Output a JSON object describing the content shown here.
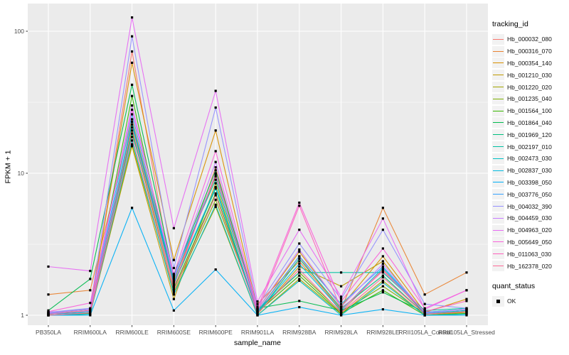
{
  "chart_data": {
    "type": "line",
    "title": "",
    "xlabel": "sample_name",
    "ylabel": "FPKM + 1",
    "y_scale": "log10",
    "y_ticks": [
      1,
      10,
      100
    ],
    "y_minor_ticks": [
      3.162,
      31.62
    ],
    "ylim_px_note": "log axis, 1 to ~158 visible",
    "grid": true,
    "panel_bg": "#EBEBEB",
    "grid_color": "#FFFFFF",
    "tick_label_color": "#4D4D4D",
    "point_marker": "square",
    "point_color": "#000000",
    "x_categories": [
      "PB350LA",
      "RRIM600LA",
      "RRIM600LE",
      "RRIM600SE",
      "RRIM600PE",
      "RRIM901LA",
      "RRIM928BA",
      "RRIM928LA",
      "RRIM928LE",
      "RRII105LA_Control",
      "RRII105LA_Stressed"
    ],
    "series": [
      {
        "name": "Hb_000032_080",
        "color": "#F8766D",
        "values": [
          1.02,
          1.05,
          72,
          1.6,
          11.0,
          1.05,
          2.6,
          1.05,
          2.1,
          1.02,
          1.05
        ]
      },
      {
        "name": "Hb_000316_070",
        "color": "#EA8331",
        "values": [
          1.4,
          1.5,
          24,
          1.75,
          9.5,
          1.2,
          2.4,
          1.1,
          5.7,
          1.4,
          2.0
        ]
      },
      {
        "name": "Hb_000354_140",
        "color": "#D89000",
        "values": [
          1.05,
          1.1,
          60,
          2.45,
          20.0,
          1.1,
          2.8,
          1.15,
          2.6,
          1.05,
          1.3
        ]
      },
      {
        "name": "Hb_001210_030",
        "color": "#C09B00",
        "values": [
          1.0,
          1.02,
          15.5,
          1.3,
          8.5,
          1.02,
          2.2,
          1.6,
          2.4,
          1.0,
          1.05
        ]
      },
      {
        "name": "Hb_001220_020",
        "color": "#A3A500",
        "values": [
          1.0,
          1.03,
          16,
          1.45,
          5.8,
          1.0,
          1.8,
          1.02,
          1.75,
          1.0,
          1.02
        ]
      },
      {
        "name": "Hb_001235_040",
        "color": "#7CAE00",
        "values": [
          1.03,
          1.08,
          20,
          1.5,
          6.5,
          1.08,
          2.0,
          1.05,
          1.6,
          1.02,
          1.08
        ]
      },
      {
        "name": "Hb_001564_100",
        "color": "#39B600",
        "values": [
          1.02,
          1.05,
          35,
          1.55,
          7.2,
          1.05,
          1.9,
          1.03,
          1.5,
          1.0,
          1.03
        ]
      },
      {
        "name": "Hb_001864_040",
        "color": "#00BB4E",
        "values": [
          1.08,
          1.8,
          42,
          1.9,
          10.5,
          1.12,
          1.26,
          1.08,
          1.45,
          1.05,
          1.1
        ]
      },
      {
        "name": "Hb_001969_120",
        "color": "#00BF7D",
        "values": [
          1.0,
          1.02,
          22,
          1.65,
          7.8,
          1.02,
          2.5,
          1.12,
          1.9,
          1.02,
          1.06
        ]
      },
      {
        "name": "Hb_002197_010",
        "color": "#00C1A3",
        "values": [
          1.05,
          1.1,
          19,
          1.95,
          9.0,
          1.1,
          2.0,
          2.0,
          2.0,
          1.08,
          1.12
        ]
      },
      {
        "name": "Hb_002473_030",
        "color": "#00BFC4",
        "values": [
          1.0,
          1.02,
          17,
          1.4,
          6.0,
          1.0,
          1.75,
          1.0,
          1.7,
          1.0,
          1.02
        ]
      },
      {
        "name": "Hb_002837_030",
        "color": "#00BAE0",
        "values": [
          1.02,
          1.05,
          23,
          1.7,
          8.0,
          1.05,
          2.3,
          1.08,
          2.15,
          1.03,
          1.08
        ]
      },
      {
        "name": "Hb_003398_050",
        "color": "#00B0F6",
        "values": [
          1.0,
          1.0,
          5.7,
          1.08,
          2.1,
          1.0,
          1.14,
          1.0,
          1.1,
          1.0,
          1.0
        ]
      },
      {
        "name": "Hb_003776_050",
        "color": "#35A2FF",
        "values": [
          1.03,
          1.07,
          26,
          1.8,
          9.8,
          1.07,
          2.6,
          1.2,
          2.2,
          1.05,
          1.1
        ]
      },
      {
        "name": "Hb_004032_390",
        "color": "#9590FF",
        "values": [
          1.05,
          1.12,
          92,
          2.15,
          29.0,
          1.15,
          3.2,
          1.3,
          4.0,
          1.2,
          1.12
        ]
      },
      {
        "name": "Hb_004459_030",
        "color": "#C77CFF",
        "values": [
          1.04,
          1.1,
          30,
          1.85,
          12.0,
          1.1,
          2.9,
          1.15,
          2.3,
          1.04,
          1.1
        ]
      },
      {
        "name": "Hb_004963_020",
        "color": "#E76BF3",
        "values": [
          2.2,
          2.05,
          125,
          4.1,
          38.0,
          1.25,
          4.0,
          1.35,
          4.8,
          1.1,
          1.5
        ]
      },
      {
        "name": "Hb_005649_050",
        "color": "#FA62DB",
        "values": [
          1.06,
          1.22,
          28,
          1.95,
          14.3,
          1.12,
          6.2,
          1.25,
          2.95,
          1.12,
          1.5
        ]
      },
      {
        "name": "Hb_011063_030",
        "color": "#FF62BC",
        "values": [
          1.02,
          1.08,
          21,
          1.6,
          10.0,
          1.06,
          5.9,
          1.1,
          2.05,
          1.06,
          1.26
        ]
      },
      {
        "name": "Hb_162378_020",
        "color": "#FF6A98",
        "values": [
          1.0,
          1.04,
          18,
          1.5,
          7.0,
          1.03,
          2.1,
          1.04,
          1.85,
          1.02,
          1.06
        ]
      }
    ],
    "legend": {
      "color_title": "tracking_id",
      "shape_title": "quant_status",
      "shape_items": [
        {
          "label": "OK",
          "marker": "square",
          "color": "#000000"
        }
      ],
      "position": "right",
      "key_bg": "#F2F2F2"
    }
  }
}
